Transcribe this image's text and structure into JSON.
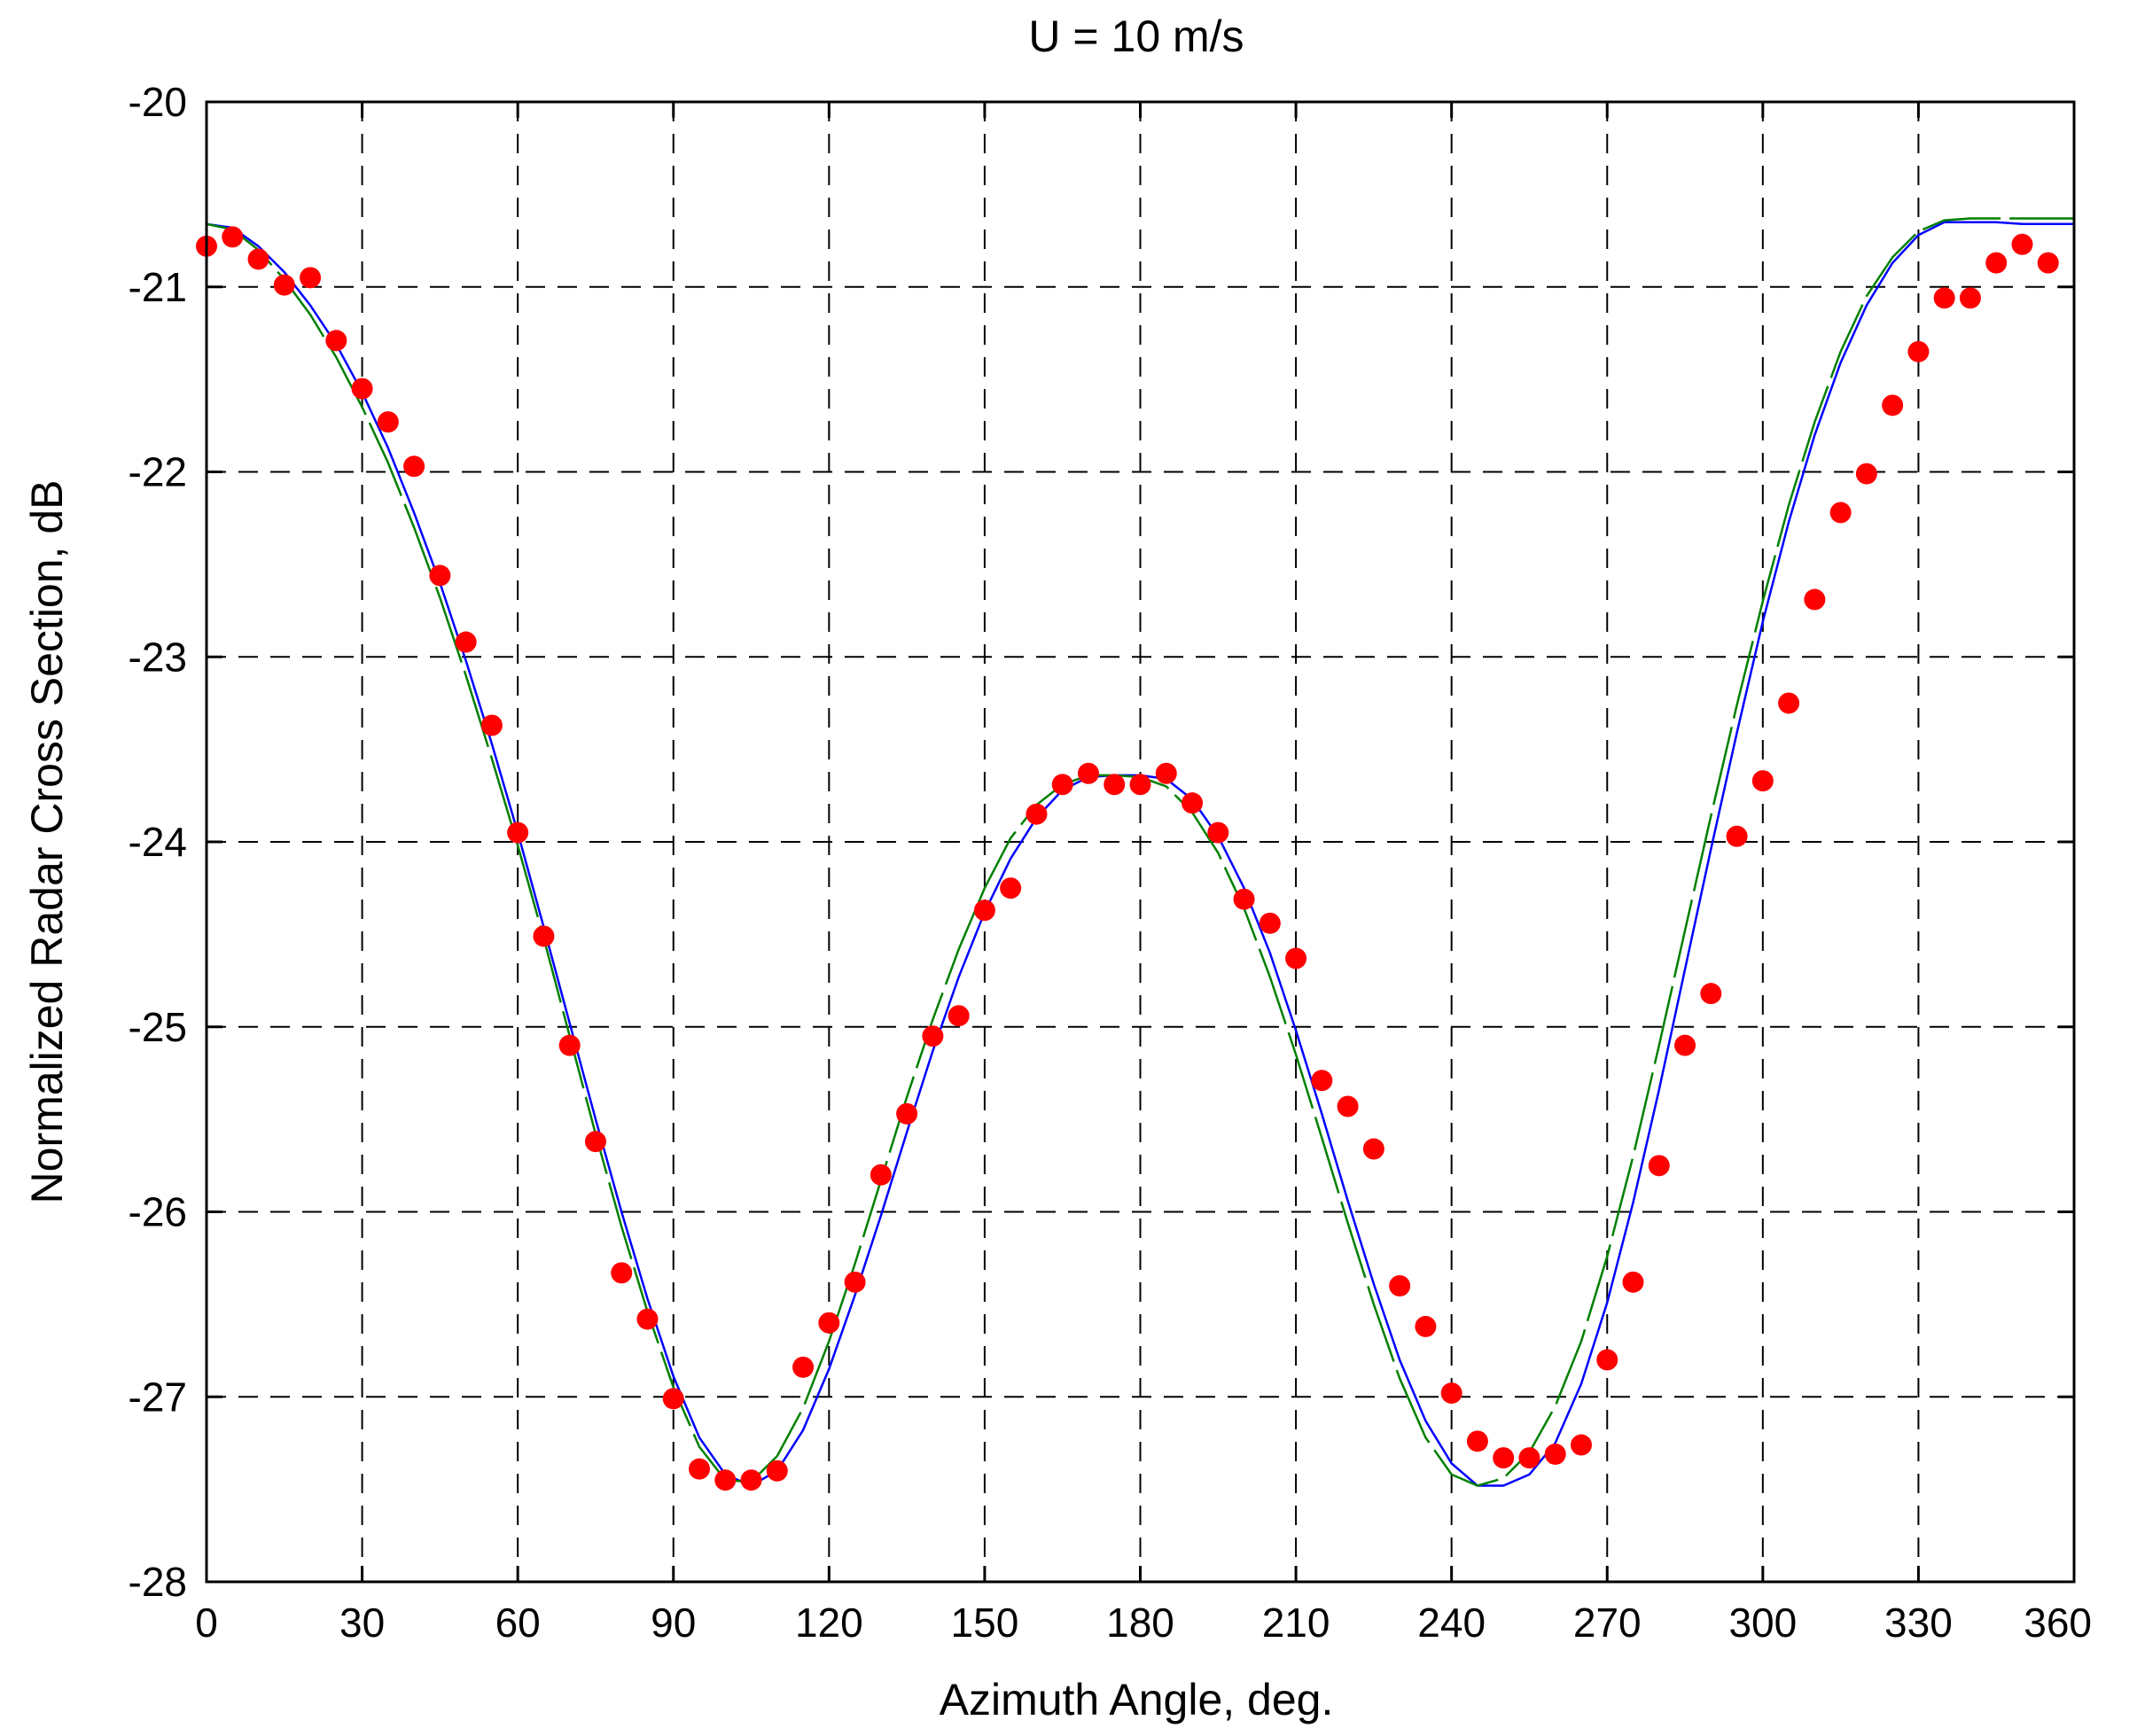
{
  "chart_data": {
    "type": "line",
    "title": "U = 10 m/s",
    "xlabel": "Azimuth Angle, deg.",
    "ylabel": "Normalized Radar Cross Section, dB",
    "xlim": [
      0,
      360
    ],
    "ylim": [
      -28,
      -20
    ],
    "xticks": [
      0,
      30,
      60,
      90,
      120,
      150,
      180,
      210,
      240,
      270,
      300,
      330,
      360
    ],
    "yticks": [
      -20,
      -21,
      -22,
      -23,
      -24,
      -25,
      -26,
      -27,
      -28
    ],
    "grid": true,
    "series": [
      {
        "style": "markers",
        "color": "#ff0000",
        "x": [
          0,
          5,
          10,
          15,
          20,
          25,
          30,
          35,
          40,
          45,
          50,
          55,
          60,
          65,
          70,
          75,
          80,
          85,
          90,
          95,
          100,
          105,
          110,
          115,
          120,
          125,
          130,
          135,
          140,
          145,
          150,
          155,
          160,
          165,
          170,
          175,
          180,
          185,
          190,
          195,
          200,
          205,
          210,
          215,
          220,
          225,
          230,
          235,
          240,
          245,
          250,
          255,
          260,
          265,
          270,
          275,
          280,
          285,
          290,
          295,
          300,
          305,
          310,
          315,
          320,
          325,
          330,
          335,
          340,
          345,
          350,
          355
        ],
        "y": [
          -20.78,
          -20.73,
          -20.85,
          -20.99,
          -20.95,
          -21.29,
          -21.55,
          -21.73,
          -21.97,
          -22.56,
          -22.92,
          -23.37,
          -23.95,
          -24.51,
          -25.1,
          -25.62,
          -26.33,
          -26.58,
          -27.01,
          -27.39,
          -27.45,
          -27.45,
          -27.4,
          -26.84,
          -26.6,
          -26.38,
          -25.8,
          -25.47,
          -25.05,
          -24.94,
          -24.37,
          -24.25,
          -23.85,
          -23.69,
          -23.63,
          -23.69,
          -23.69,
          -23.63,
          -23.79,
          -23.95,
          -24.31,
          -24.44,
          -24.63,
          -25.29,
          -25.43,
          -25.66,
          -26.4,
          -26.62,
          -26.98,
          -27.24,
          -27.33,
          -27.33,
          -27.31,
          -27.26,
          -26.8,
          -26.38,
          -25.75,
          -25.1,
          -24.82,
          -23.97,
          -23.67,
          -23.25,
          -22.69,
          -22.22,
          -22.01,
          -21.64,
          -21.35,
          -21.06,
          -21.06,
          -20.87,
          -20.77,
          -20.87
        ]
      },
      {
        "style": "solid-line",
        "color": "#0000ff",
        "x": [
          0,
          5,
          10,
          15,
          20,
          25,
          30,
          35,
          40,
          45,
          50,
          55,
          60,
          65,
          70,
          75,
          80,
          85,
          90,
          95,
          100,
          105,
          110,
          115,
          120,
          125,
          130,
          135,
          140,
          145,
          150,
          155,
          160,
          165,
          170,
          175,
          180,
          185,
          190,
          195,
          200,
          205,
          210,
          215,
          220,
          225,
          230,
          235,
          240,
          245,
          250,
          255,
          260,
          265,
          270,
          275,
          280,
          285,
          290,
          295,
          300,
          305,
          310,
          315,
          320,
          325,
          330,
          335,
          340,
          345,
          350,
          355,
          360
        ],
        "y": [
          -20.66,
          -20.68,
          -20.78,
          -20.92,
          -21.1,
          -21.31,
          -21.57,
          -21.87,
          -22.22,
          -22.6,
          -23.02,
          -23.47,
          -23.95,
          -24.46,
          -24.98,
          -25.5,
          -26.0,
          -26.47,
          -26.89,
          -27.22,
          -27.42,
          -27.48,
          -27.4,
          -27.18,
          -26.85,
          -26.45,
          -26.02,
          -25.57,
          -25.13,
          -24.73,
          -24.38,
          -24.09,
          -23.87,
          -23.72,
          -23.65,
          -23.64,
          -23.64,
          -23.66,
          -23.77,
          -23.97,
          -24.25,
          -24.6,
          -25.02,
          -25.47,
          -25.94,
          -26.39,
          -26.8,
          -27.13,
          -27.36,
          -27.48,
          -27.48,
          -27.42,
          -27.25,
          -26.93,
          -26.49,
          -25.95,
          -25.34,
          -24.69,
          -24.04,
          -23.41,
          -22.81,
          -22.27,
          -21.8,
          -21.41,
          -21.1,
          -20.87,
          -20.72,
          -20.65,
          -20.65,
          -20.65,
          -20.66,
          -20.66,
          -20.66
        ]
      },
      {
        "style": "dash-line",
        "color": "#008000",
        "x": [
          0,
          5,
          10,
          15,
          20,
          25,
          30,
          35,
          40,
          45,
          50,
          55,
          60,
          65,
          70,
          75,
          80,
          85,
          90,
          95,
          100,
          105,
          110,
          115,
          120,
          125,
          130,
          135,
          140,
          145,
          150,
          155,
          160,
          165,
          170,
          175,
          180,
          185,
          190,
          195,
          200,
          205,
          210,
          215,
          220,
          225,
          230,
          235,
          240,
          245,
          250,
          255,
          260,
          265,
          270,
          275,
          280,
          285,
          290,
          295,
          300,
          305,
          310,
          315,
          320,
          325,
          330,
          335,
          340,
          345,
          350,
          355,
          360
        ],
        "y": [
          -20.66,
          -20.69,
          -20.8,
          -20.96,
          -21.15,
          -21.38,
          -21.65,
          -21.95,
          -22.3,
          -22.68,
          -23.1,
          -23.55,
          -24.02,
          -24.52,
          -25.05,
          -25.58,
          -26.08,
          -26.54,
          -26.95,
          -27.27,
          -27.45,
          -27.46,
          -27.32,
          -27.06,
          -26.7,
          -26.28,
          -25.83,
          -25.38,
          -24.96,
          -24.58,
          -24.25,
          -23.98,
          -23.8,
          -23.69,
          -23.64,
          -23.64,
          -23.65,
          -23.7,
          -23.84,
          -24.06,
          -24.36,
          -24.73,
          -25.15,
          -25.6,
          -26.06,
          -26.5,
          -26.9,
          -27.22,
          -27.42,
          -27.48,
          -27.44,
          -27.3,
          -27.05,
          -26.7,
          -26.24,
          -25.7,
          -25.1,
          -24.48,
          -23.86,
          -23.26,
          -22.7,
          -22.18,
          -21.73,
          -21.35,
          -21.05,
          -20.84,
          -20.7,
          -20.64,
          -20.63,
          -20.63,
          -20.63,
          -20.63,
          -20.63
        ]
      }
    ]
  }
}
